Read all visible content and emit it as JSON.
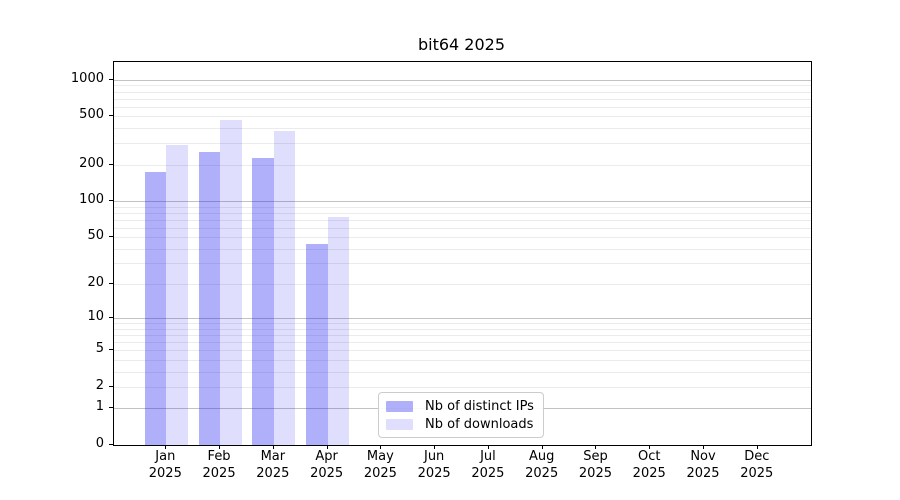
{
  "chart_data": {
    "type": "bar",
    "title": "bit64 2025",
    "x_tick_months": [
      "Jan",
      "Feb",
      "Mar",
      "Apr",
      "May",
      "Jun",
      "Jul",
      "Aug",
      "Sep",
      "Oct",
      "Nov",
      "Dec"
    ],
    "x_tick_year": "2025",
    "y_ticks": [
      1000,
      500,
      200,
      100,
      50,
      20,
      10,
      5,
      2,
      1,
      0
    ],
    "y_scale": "log1p",
    "ylim": [
      0,
      1400
    ],
    "grid": {
      "major_values": [
        1,
        10,
        100,
        1000
      ],
      "minor_values": [
        2,
        3,
        4,
        5,
        6,
        7,
        8,
        9,
        20,
        30,
        40,
        50,
        60,
        70,
        80,
        90,
        200,
        300,
        400,
        500,
        600,
        700,
        800,
        900
      ],
      "major_color": "#c2c2c2",
      "minor_color": "#ebebeb"
    },
    "series": [
      {
        "name": "Nb of distinct IPs",
        "color": "rgba(25,25,240,0.35)",
        "values": [
          175,
          255,
          225,
          44,
          0,
          0,
          0,
          0,
          0,
          0,
          0,
          0
        ]
      },
      {
        "name": "Nb of downloads",
        "color": "rgba(25,25,240,0.14)",
        "values": [
          290,
          465,
          380,
          73,
          0,
          0,
          0,
          0,
          0,
          0,
          0,
          0
        ]
      }
    ],
    "legend": {
      "position": "lower-center",
      "labels": [
        "Nb of distinct IPs",
        "Nb of downloads"
      ]
    }
  }
}
